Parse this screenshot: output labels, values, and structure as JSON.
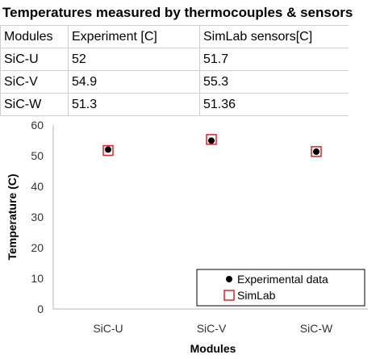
{
  "table": {
    "title": "Temperatures measured by thermocouples & sensors",
    "headers": [
      "Modules",
      "Experiment [C]",
      "SimLab sensors[C]"
    ],
    "rows": [
      [
        "SiC-U",
        "52",
        "51.7"
      ],
      [
        "SiC-V",
        "54.9",
        "55.3"
      ],
      [
        "SiC-W",
        "51.3",
        "51.36"
      ]
    ]
  },
  "chart_data": {
    "type": "scatter",
    "categories": [
      "SiC-U",
      "SiC-V",
      "SiC-W"
    ],
    "series": [
      {
        "name": "Experimental data",
        "values": [
          52,
          54.9,
          51.3
        ],
        "marker": "filled-circle",
        "color": "#000000"
      },
      {
        "name": "SimLab",
        "values": [
          51.7,
          55.3,
          51.36
        ],
        "marker": "open-square",
        "color": "#d9262a"
      }
    ],
    "xlabel": "Modules",
    "ylabel": "Temperature (C)",
    "ylim": [
      0,
      60
    ],
    "yticks": [
      0,
      10,
      20,
      30,
      40,
      50,
      60
    ],
    "grid": false,
    "legend_position": "bottom-right"
  }
}
